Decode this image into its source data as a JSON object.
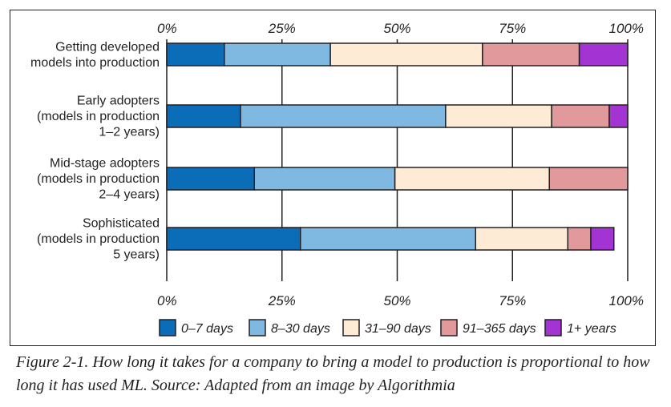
{
  "chart_data": {
    "type": "bar",
    "orientation": "horizontal",
    "stacked": true,
    "categories": [
      [
        "Getting developed",
        "models into production"
      ],
      [
        "Early adopters",
        "(models in production",
        "1–2 years)"
      ],
      [
        "Mid-stage adopters",
        "(models in production",
        "2–4 years)"
      ],
      [
        "Sophisticated",
        "(models in production",
        "5 years)"
      ]
    ],
    "series": [
      {
        "name": "0–7 days",
        "color": "#0b6db7",
        "values": [
          12.5,
          16,
          19,
          29
        ]
      },
      {
        "name": "8–30 days",
        "color": "#7fb8e0",
        "values": [
          23,
          44.5,
          30.5,
          38
        ]
      },
      {
        "name": "31–90 days",
        "color": "#fdebd5",
        "values": [
          33,
          23,
          33.5,
          20
        ]
      },
      {
        "name": "91–365 days",
        "color": "#e1999b",
        "values": [
          21,
          12.5,
          17,
          5
        ]
      },
      {
        "name": "1+ years",
        "color": "#a433d4",
        "values": [
          10.5,
          4,
          0,
          5
        ]
      }
    ],
    "x_ticks": [
      "0%",
      "25%",
      "50%",
      "75%",
      "100%"
    ],
    "xlim": [
      0,
      100
    ],
    "legend_position": "bottom",
    "grid": "vertical"
  },
  "caption": "Figure 2-1. How long it takes for a company to bring a model to production is proportional to how long it has used ML. Source: Adapted from an image by Algorithmia"
}
